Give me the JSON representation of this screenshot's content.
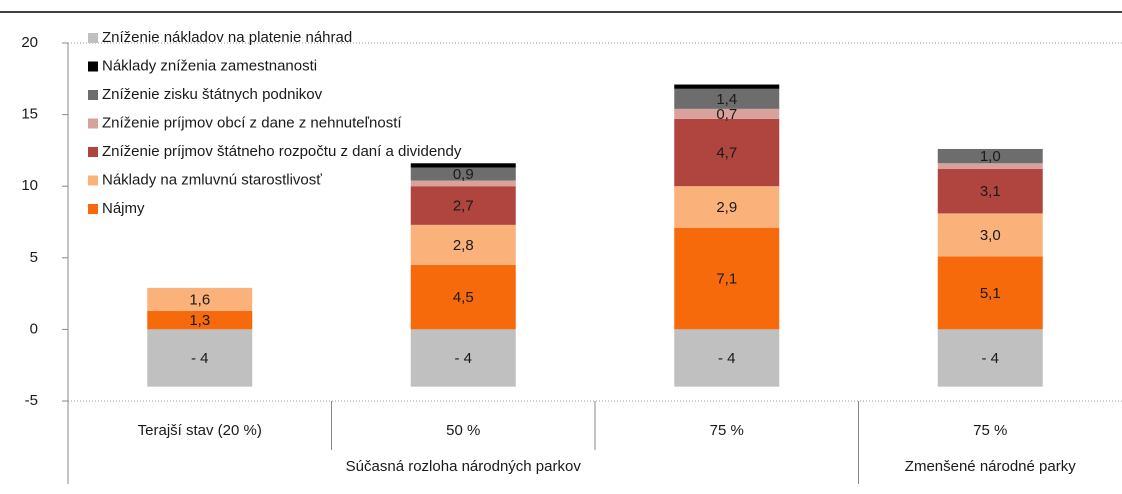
{
  "chart_data": {
    "type": "stacked_bar",
    "categories": [
      "Terajší stav (20 %)",
      "50 %",
      "75 %",
      "75 %"
    ],
    "groups": [
      {
        "name": "Súčasná rozloha národných parkov",
        "size": 3
      },
      {
        "name": "Zmenšené národné parky",
        "size": 1
      }
    ],
    "series": [
      {
        "name": "Nájmy",
        "color": "#f76a0c",
        "values": [
          1.3,
          4.5,
          7.1,
          5.1
        ],
        "value_labels": [
          "1,3",
          "4,5",
          "7,1",
          "5,1"
        ]
      },
      {
        "name": "Náklady na zmluvnú starostlivosť",
        "color": "#fbb27a",
        "values": [
          1.6,
          2.8,
          2.9,
          3.0
        ],
        "value_labels": [
          "1,6",
          "2,8",
          "2,9",
          "3,0"
        ]
      },
      {
        "name": "Zníženie príjmov štátneho rozpočtu z daní a dividendy",
        "color": "#b0453f",
        "values": [
          null,
          2.7,
          4.7,
          3.1
        ],
        "value_labels": [
          null,
          "2,7",
          "4,7",
          "3,1"
        ]
      },
      {
        "name": "Zníženie príjmov obcí z dane z nehnuteľností",
        "color": "#d9a19c",
        "values": [
          null,
          0.4,
          0.7,
          0.4
        ],
        "value_labels": [
          null,
          null,
          "0,7",
          null
        ]
      },
      {
        "name": "Zníženie zisku štátnych podnikov",
        "color": "#6d6d6d",
        "values": [
          null,
          0.9,
          1.4,
          1.0
        ],
        "value_labels": [
          null,
          "0,9",
          "1,4",
          "1,0"
        ]
      },
      {
        "name": "Náklady zníženia zamestnanosti",
        "color": "#000000",
        "values": [
          null,
          0.3,
          0.3,
          null
        ],
        "value_labels": [
          null,
          null,
          null,
          null
        ]
      },
      {
        "name": "Zníženie nákladov na platenie náhrad",
        "color": "#c0c0c0",
        "values": [
          -4,
          -4,
          -4,
          -4
        ],
        "value_labels": [
          "- 4",
          "- 4",
          "- 4",
          "- 4"
        ]
      }
    ],
    "ylim": [
      -5,
      20
    ],
    "yticks": [
      -5,
      0,
      5,
      10,
      15,
      20
    ],
    "legend": "upper left"
  }
}
